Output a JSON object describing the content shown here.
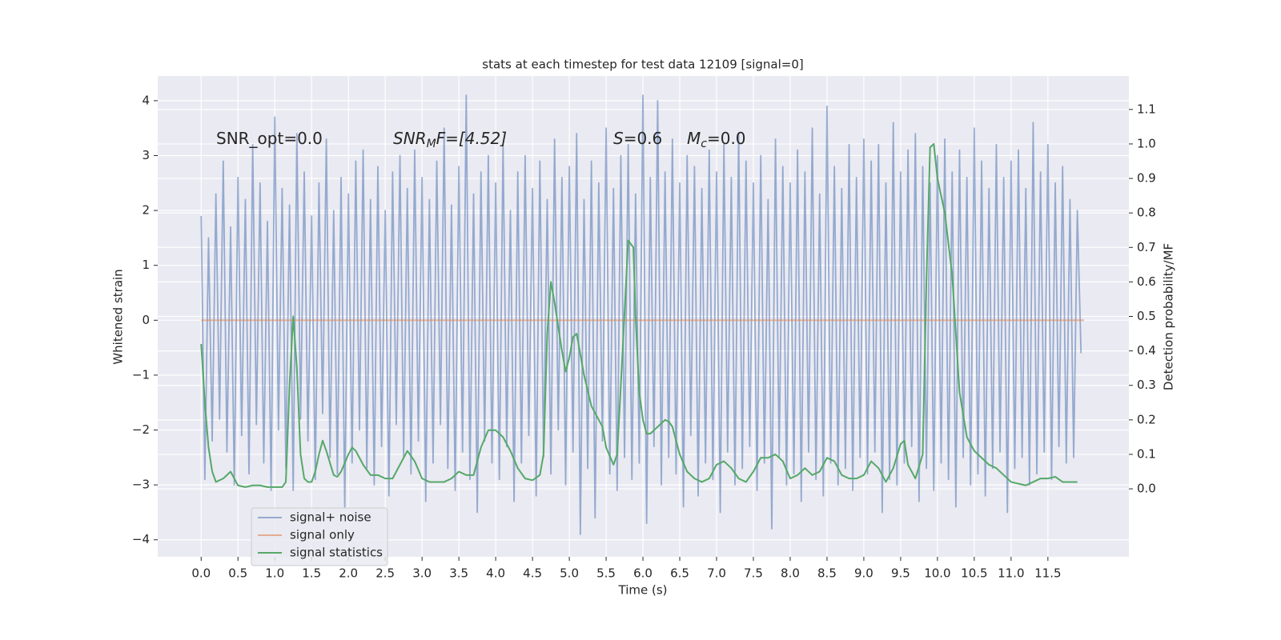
{
  "chart_data": {
    "type": "line",
    "title": "stats at each timestep for test data 12109 [signal=0]",
    "xlabel": "Time (s)",
    "ylabel": "Whitened strain",
    "y2label": "Detection probability/MF",
    "annotations": [
      {
        "main": "SNR_opt=0.0"
      },
      {
        "main": "SNR",
        "sub": "M",
        "tail": "F=[4.52]"
      },
      {
        "main": "S",
        "tail": "=0.6"
      },
      {
        "main": "M",
        "sub": "c",
        "tail": "=0.0"
      }
    ],
    "xlim": [
      -0.59,
      12.6
    ],
    "ylim": [
      -4.31,
      4.45
    ],
    "y2lim": [
      -0.197,
      1.197
    ],
    "xticks": [
      {
        "value": 0,
        "label": "0.0"
      },
      0.5,
      {
        "value": 1,
        "label": "1.0"
      },
      1.5,
      {
        "value": 2,
        "label": "2.0"
      },
      2.5,
      {
        "value": 3,
        "label": "3.0"
      },
      3.5,
      {
        "value": 4,
        "label": "4.0"
      },
      4.5,
      {
        "value": 5,
        "label": "5.0"
      },
      5.5,
      {
        "value": 6,
        "label": "6.0"
      },
      6.5,
      {
        "value": 7,
        "label": "7.0"
      },
      7.5,
      {
        "value": 8,
        "label": "8.0"
      },
      8.5,
      {
        "value": 9,
        "label": "9.0"
      },
      9.5,
      {
        "value": 10,
        "label": "10.0"
      },
      10.5,
      {
        "value": 11,
        "label": "11.0"
      },
      11.5
    ],
    "yticks": [
      {
        "value": -4,
        "label": "−4"
      },
      {
        "value": -3,
        "label": "−3"
      },
      {
        "value": -2,
        "label": "−2"
      },
      {
        "value": -1,
        "label": "−1"
      },
      0,
      1,
      2,
      3,
      4
    ],
    "y2ticks": [
      {
        "value": 0,
        "label": "0.0"
      },
      0.1,
      0.2,
      0.3,
      0.4,
      0.5,
      0.6,
      0.7,
      0.8,
      0.9,
      {
        "value": 1,
        "label": "1.0"
      },
      1.1
    ],
    "grid": true,
    "legend": "lower left",
    "series": [
      {
        "name": "signal+ noise",
        "color": "#4c72b0",
        "alpha": 0.55,
        "x": [
          0,
          0.05,
          0.1,
          0.15,
          0.2,
          0.25,
          0.3,
          0.35,
          0.4,
          0.45,
          0.5,
          0.55,
          0.6,
          0.65,
          0.7,
          0.75,
          0.8,
          0.85,
          0.9,
          0.95,
          1,
          1.05,
          1.1,
          1.15,
          1.2,
          1.25,
          1.3,
          1.35,
          1.4,
          1.45,
          1.5,
          1.55,
          1.6,
          1.65,
          1.7,
          1.75,
          1.8,
          1.85,
          1.9,
          1.95,
          2,
          2.05,
          2.1,
          2.15,
          2.2,
          2.25,
          2.3,
          2.35,
          2.4,
          2.45,
          2.5,
          2.55,
          2.6,
          2.65,
          2.7,
          2.75,
          2.8,
          2.85,
          2.9,
          2.95,
          3,
          3.05,
          3.1,
          3.15,
          3.2,
          3.25,
          3.3,
          3.35,
          3.4,
          3.45,
          3.5,
          3.55,
          3.6,
          3.65,
          3.7,
          3.75,
          3.8,
          3.85,
          3.9,
          3.95,
          4,
          4.05,
          4.1,
          4.15,
          4.2,
          4.25,
          4.3,
          4.35,
          4.4,
          4.45,
          4.5,
          4.55,
          4.6,
          4.65,
          4.7,
          4.75,
          4.8,
          4.85,
          4.9,
          4.95,
          5,
          5.05,
          5.1,
          5.15,
          5.2,
          5.25,
          5.3,
          5.35,
          5.4,
          5.45,
          5.5,
          5.55,
          5.6,
          5.65,
          5.7,
          5.75,
          5.8,
          5.85,
          5.9,
          5.95,
          6,
          6.05,
          6.1,
          6.15,
          6.2,
          6.25,
          6.3,
          6.35,
          6.4,
          6.45,
          6.5,
          6.55,
          6.6,
          6.65,
          6.7,
          6.75,
          6.8,
          6.85,
          6.9,
          6.95,
          7,
          7.05,
          7.1,
          7.15,
          7.2,
          7.25,
          7.3,
          7.35,
          7.4,
          7.45,
          7.5,
          7.55,
          7.6,
          7.65,
          7.7,
          7.75,
          7.8,
          7.85,
          7.9,
          7.95,
          8,
          8.05,
          8.1,
          8.15,
          8.2,
          8.25,
          8.3,
          8.35,
          8.4,
          8.45,
          8.5,
          8.55,
          8.6,
          8.65,
          8.7,
          8.75,
          8.8,
          8.85,
          8.9,
          8.95,
          9,
          9.05,
          9.1,
          9.15,
          9.2,
          9.25,
          9.3,
          9.35,
          9.4,
          9.45,
          9.5,
          9.55,
          9.6,
          9.65,
          9.7,
          9.75,
          9.8,
          9.85,
          9.9,
          9.95,
          10,
          10.05,
          10.1,
          10.15,
          10.2,
          10.25,
          10.3,
          10.35,
          10.4,
          10.45,
          10.5,
          10.55,
          10.6,
          10.65,
          10.7,
          10.75,
          10.8,
          10.85,
          10.9,
          10.95,
          11,
          11.05,
          11.1,
          11.15,
          11.2,
          11.25,
          11.3,
          11.35,
          11.4,
          11.45,
          11.5,
          11.55,
          11.6,
          11.65,
          11.7,
          11.75,
          11.8,
          11.85,
          11.9,
          11.95
        ],
        "values": [
          1.9,
          -2.9,
          1.5,
          -2.2,
          2.3,
          -1.8,
          2.9,
          -2.4,
          1.7,
          -3.0,
          2.6,
          -2.1,
          2.2,
          -2.8,
          3.2,
          -1.9,
          2.5,
          -2.6,
          1.8,
          -3.1,
          3.7,
          -2.0,
          2.4,
          -2.7,
          2.1,
          -3.1,
          3.4,
          -1.8,
          2.7,
          -2.2,
          1.9,
          -2.9,
          2.5,
          -1.7,
          3.3,
          -2.5,
          2.0,
          -2.8,
          2.6,
          -3.4,
          2.3,
          -2.6,
          2.9,
          -2.0,
          3.1,
          -2.7,
          2.2,
          -3.0,
          2.8,
          -2.3,
          2.0,
          -3.2,
          2.7,
          -1.9,
          3.0,
          -2.5,
          2.4,
          -2.8,
          3.1,
          -2.2,
          2.6,
          -3.3,
          2.2,
          -2.6,
          2.9,
          -1.9,
          3.5,
          -2.7,
          2.1,
          -3.1,
          2.8,
          -2.4,
          4.1,
          -2.9,
          2.3,
          -3.5,
          2.7,
          -2.2,
          3.0,
          -2.6,
          2.5,
          -2.9,
          3.2,
          -2.3,
          2.0,
          -3.3,
          2.7,
          -2.6,
          3.0,
          -2.1,
          2.4,
          -3.2,
          2.9,
          -2.5,
          2.2,
          -2.8,
          3.3,
          -2.0,
          2.6,
          -3.0,
          2.8,
          -2.4,
          3.4,
          -3.9,
          2.2,
          -2.7,
          2.9,
          -3.6,
          2.5,
          -2.2,
          3.5,
          -2.8,
          2.4,
          -3.1,
          3.0,
          -2.5,
          3.2,
          -2.9,
          2.3,
          -2.6,
          4.1,
          -3.7,
          2.6,
          -2.3,
          4.0,
          -3.0,
          2.7,
          -2.5,
          3.3,
          -2.8,
          2.5,
          -3.4,
          3.0,
          -2.1,
          2.8,
          -3.2,
          2.4,
          -2.6,
          3.1,
          -2.9,
          2.7,
          -3.5,
          3.2,
          -2.4,
          2.6,
          -3.0,
          3.4,
          -2.7,
          2.9,
          -2.3,
          2.5,
          -3.1,
          3.0,
          -2.6,
          2.2,
          -3.8,
          3.3,
          -2.5,
          2.8,
          -3.0,
          2.5,
          -2.8,
          3.1,
          -3.3,
          2.7,
          -2.4,
          3.5,
          -2.9,
          2.3,
          -3.2,
          3.9,
          -2.6,
          2.8,
          -3.0,
          2.4,
          -2.7,
          3.2,
          -3.1,
          2.6,
          -2.5,
          3.3,
          -2.8,
          2.9,
          -2.4,
          3.2,
          -3.5,
          2.5,
          -2.9,
          3.6,
          -3.0,
          2.7,
          -2.6,
          3.1,
          -2.3,
          3.4,
          -3.3,
          2.8,
          -2.7,
          2.5,
          -3.1,
          3.0,
          -2.6,
          3.3,
          -2.9,
          2.7,
          -3.4,
          3.1,
          -2.5,
          2.6,
          -3.0,
          3.5,
          -2.8,
          2.9,
          -3.2,
          2.4,
          -2.7,
          3.2,
          -2.4,
          2.6,
          -3.5,
          2.9,
          -2.7,
          3.1,
          -2.5,
          2.4,
          -3.0,
          3.6,
          -2.8,
          2.7,
          -2.4,
          3.2,
          -2.9,
          2.5,
          -2.3,
          2.8,
          -2.6,
          2.2,
          -2.5,
          2.0,
          -0.6
        ]
      },
      {
        "name": "signal only",
        "color": "#dd8452",
        "alpha": 0.6,
        "x": [
          0,
          11.99
        ],
        "values": [
          0,
          0
        ]
      },
      {
        "name": "signal statistics",
        "color": "#55a868",
        "alpha": 1,
        "axis": "y2",
        "x": [
          0,
          0.05,
          0.1,
          0.15,
          0.2,
          0.3,
          0.4,
          0.45,
          0.5,
          0.6,
          0.7,
          0.8,
          0.9,
          1.0,
          1.1,
          1.15,
          1.2,
          1.25,
          1.3,
          1.35,
          1.4,
          1.45,
          1.5,
          1.55,
          1.6,
          1.65,
          1.7,
          1.8,
          1.85,
          1.9,
          2.0,
          2.05,
          2.1,
          2.2,
          2.3,
          2.4,
          2.5,
          2.6,
          2.7,
          2.8,
          2.9,
          3.0,
          3.1,
          3.2,
          3.3,
          3.4,
          3.5,
          3.6,
          3.7,
          3.8,
          3.9,
          4.0,
          4.1,
          4.2,
          4.3,
          4.4,
          4.5,
          4.6,
          4.65,
          4.7,
          4.75,
          4.8,
          4.9,
          4.95,
          5.0,
          5.05,
          5.1,
          5.2,
          5.3,
          5.4,
          5.45,
          5.5,
          5.6,
          5.65,
          5.7,
          5.8,
          5.87,
          5.9,
          5.95,
          6.0,
          6.05,
          6.1,
          6.2,
          6.3,
          6.35,
          6.4,
          6.5,
          6.6,
          6.7,
          6.8,
          6.9,
          7.0,
          7.1,
          7.2,
          7.3,
          7.4,
          7.5,
          7.6,
          7.7,
          7.8,
          7.9,
          8.0,
          8.1,
          8.2,
          8.3,
          8.4,
          8.5,
          8.6,
          8.7,
          8.8,
          8.9,
          9.0,
          9.1,
          9.2,
          9.3,
          9.4,
          9.5,
          9.55,
          9.6,
          9.7,
          9.8,
          9.85,
          9.9,
          9.95,
          10.0,
          10.1,
          10.2,
          10.3,
          10.4,
          10.5,
          10.6,
          10.7,
          10.8,
          10.9,
          11.0,
          11.1,
          11.2,
          11.3,
          11.4,
          11.5,
          11.6,
          11.7,
          11.8,
          11.9
        ],
        "values": [
          0.42,
          0.25,
          0.12,
          0.05,
          0.02,
          0.03,
          0.05,
          0.03,
          0.01,
          0.005,
          0.01,
          0.01,
          0.005,
          0.005,
          0.005,
          0.02,
          0.3,
          0.5,
          0.35,
          0.1,
          0.03,
          0.02,
          0.02,
          0.05,
          0.1,
          0.14,
          0.11,
          0.04,
          0.035,
          0.05,
          0.1,
          0.12,
          0.11,
          0.07,
          0.04,
          0.04,
          0.03,
          0.03,
          0.07,
          0.11,
          0.08,
          0.03,
          0.02,
          0.02,
          0.02,
          0.03,
          0.05,
          0.04,
          0.04,
          0.12,
          0.17,
          0.17,
          0.15,
          0.11,
          0.06,
          0.03,
          0.025,
          0.04,
          0.1,
          0.45,
          0.6,
          0.54,
          0.4,
          0.34,
          0.38,
          0.44,
          0.45,
          0.33,
          0.24,
          0.2,
          0.18,
          0.12,
          0.07,
          0.1,
          0.3,
          0.72,
          0.7,
          0.5,
          0.28,
          0.2,
          0.16,
          0.16,
          0.18,
          0.2,
          0.195,
          0.18,
          0.1,
          0.05,
          0.03,
          0.02,
          0.03,
          0.07,
          0.08,
          0.06,
          0.03,
          0.02,
          0.05,
          0.09,
          0.09,
          0.1,
          0.08,
          0.03,
          0.04,
          0.06,
          0.04,
          0.05,
          0.09,
          0.08,
          0.04,
          0.03,
          0.03,
          0.04,
          0.08,
          0.06,
          0.02,
          0.06,
          0.13,
          0.14,
          0.07,
          0.03,
          0.1,
          0.6,
          0.99,
          1.0,
          0.9,
          0.8,
          0.62,
          0.28,
          0.15,
          0.11,
          0.09,
          0.07,
          0.06,
          0.04,
          0.02,
          0.015,
          0.01,
          0.02,
          0.03,
          0.03,
          0.035,
          0.02,
          0.02,
          0.02
        ]
      }
    ]
  }
}
